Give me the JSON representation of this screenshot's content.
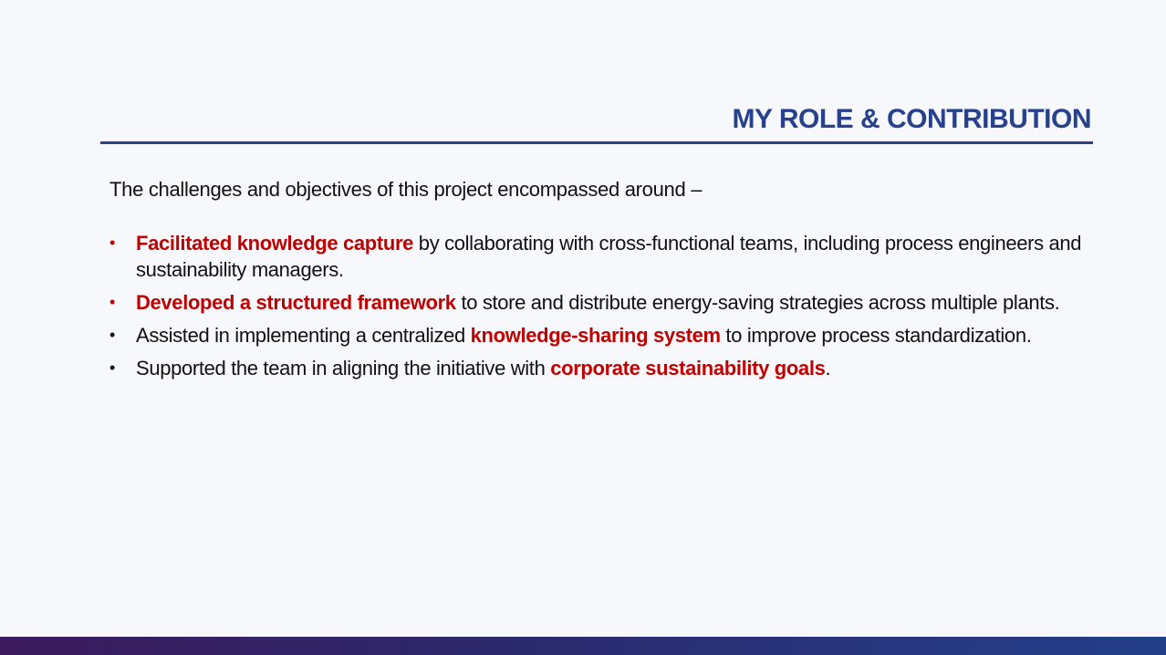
{
  "slide": {
    "title": "MY ROLE & CONTRIBUTION",
    "intro": "The challenges and objectives of this project encompassed around –",
    "bullets": [
      {
        "marker": "•",
        "marker_color": "#c00000",
        "parts": [
          {
            "text": "Facilitated knowledge capture",
            "highlight": true
          },
          {
            "text": " by collaborating with cross-functional teams, including process engineers and sustainability managers.",
            "highlight": false
          }
        ]
      },
      {
        "marker": "•",
        "marker_color": "#c00000",
        "parts": [
          {
            "text": "Developed a structured framework",
            "highlight": true
          },
          {
            "text": " to store and distribute energy-saving strategies across multiple plants.",
            "highlight": false
          }
        ]
      },
      {
        "marker": "•",
        "marker_color": "#111111",
        "parts": [
          {
            "text": "Assisted in implementing a centralized ",
            "highlight": false
          },
          {
            "text": "knowledge-sharing system",
            "highlight": true
          },
          {
            "text": " to improve process standardization.",
            "highlight": false
          }
        ]
      },
      {
        "marker": "•",
        "marker_color": "#111111",
        "parts": [
          {
            "text": "Supported the team in aligning the initiative with ",
            "highlight": false
          },
          {
            "text": "corporate sustainability goals",
            "highlight": true
          },
          {
            "text": ".",
            "highlight": false
          }
        ]
      }
    ]
  },
  "colors": {
    "title": "#27418c",
    "highlight": "#c00000",
    "body_text": "#111111",
    "background": "#f6f8fb"
  }
}
